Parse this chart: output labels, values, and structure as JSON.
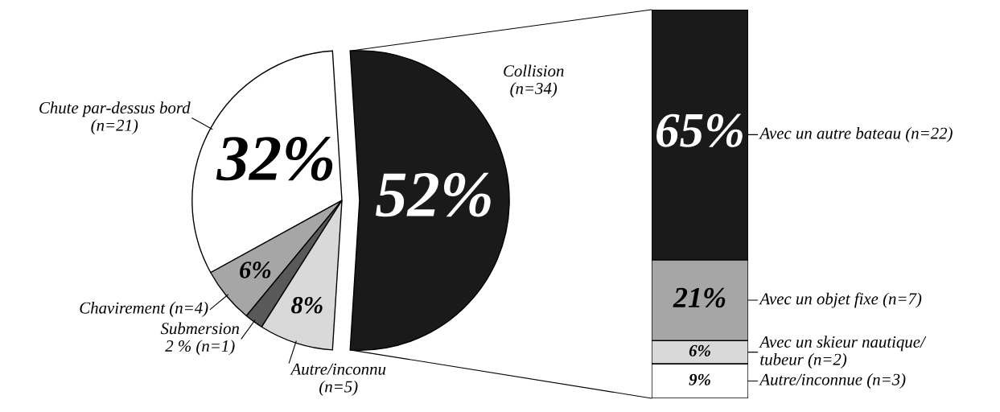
{
  "chart_data": [
    {
      "type": "pie",
      "categories": [
        "Collision\n(n=34)",
        "Chute par-dessus bord\n(n=21)",
        "Chavirement (n=4)",
        "Submersion\n2 % (n=1)",
        "Autre/inconnu\n(n=5)"
      ],
      "values": [
        52,
        32,
        6,
        2,
        8
      ],
      "colors": [
        "#1a1a1a",
        "#ffffff",
        "#a6a6a6",
        "#595959",
        "#d9d9d9"
      ],
      "value_labels": [
        "52%",
        "32%",
        "6%",
        null,
        "8%"
      ]
    },
    {
      "type": "bar",
      "stacked": true,
      "legend": "right",
      "categories": [
        null
      ],
      "series": [
        {
          "name": "Autre/inconnue (n=3)",
          "color": "#ffffff",
          "values": [
            9
          ],
          "value_labels": [
            "9%"
          ]
        },
        {
          "name": "Avec un skieur nautique/\ntubeur (n=2)",
          "color": "#d9d9d9",
          "values": [
            6
          ],
          "value_labels": [
            "6%"
          ]
        },
        {
          "name": "Avec un objet fixe (n=7)",
          "color": "#a6a6a6",
          "values": [
            21
          ],
          "value_labels": [
            "21%"
          ]
        },
        {
          "name": "Avec un autre bateau (n=22)",
          "color": "#1a1a1a",
          "values": [
            65
          ],
          "value_labels": [
            "65%"
          ]
        }
      ]
    }
  ]
}
